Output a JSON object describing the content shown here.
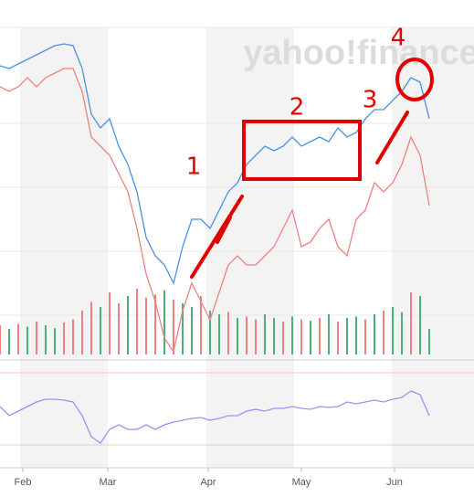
{
  "chart_data": {
    "type": "line",
    "watermark": "yahoo!finance",
    "annotations": [
      "1",
      "2",
      "3",
      "4"
    ],
    "months": [
      "Feb",
      "Mar",
      "Apr",
      "May",
      "Jun"
    ],
    "month_x": [
      25,
      118,
      228,
      330,
      432
    ],
    "xlim": [
      0,
      519
    ],
    "ylim": [
      0,
      400
    ],
    "x": [
      0,
      10,
      20,
      30,
      40,
      50,
      60,
      70,
      80,
      90,
      100,
      110,
      120,
      130,
      140,
      150,
      160,
      170,
      180,
      190,
      200,
      210,
      220,
      230,
      240,
      250,
      260,
      270,
      280,
      290,
      300,
      310,
      320,
      330,
      340,
      350,
      360,
      370,
      380,
      390,
      400,
      410,
      420,
      430,
      440,
      450,
      460,
      470
    ],
    "series": [
      {
        "color": "#4a90e2",
        "values": [
          328,
          325,
          330,
          335,
          340,
          345,
          350,
          352,
          350,
          325,
          275,
          260,
          270,
          240,
          220,
          190,
          140,
          120,
          110,
          90,
          130,
          160,
          160,
          150,
          170,
          190,
          200,
          220,
          230,
          240,
          235,
          240,
          250,
          240,
          245,
          250,
          245,
          260,
          250,
          255,
          270,
          280,
          280,
          290,
          300,
          315,
          310,
          270
        ]
      },
      {
        "color": "#f08080",
        "values": [
          305,
          300,
          305,
          315,
          305,
          315,
          320,
          325,
          325,
          300,
          250,
          240,
          230,
          210,
          190,
          150,
          100,
          70,
          30,
          15,
          60,
          90,
          70,
          50,
          80,
          110,
          120,
          110,
          110,
          120,
          130,
          150,
          170,
          130,
          135,
          150,
          160,
          130,
          120,
          160,
          170,
          200,
          190,
          200,
          220,
          250,
          230,
          175
        ]
      }
    ],
    "volume": {
      "ylim": [
        0,
        100
      ],
      "values": [
        40,
        35,
        42,
        38,
        45,
        40,
        36,
        44,
        48,
        60,
        72,
        65,
        85,
        70,
        80,
        90,
        78,
        82,
        88,
        75,
        70,
        65,
        80,
        60,
        55,
        58,
        50,
        52,
        48,
        55,
        50,
        45,
        52,
        48,
        46,
        50,
        55,
        45,
        50,
        52,
        48,
        55,
        60,
        65,
        58,
        85,
        80,
        35
      ],
      "colors": [
        "#f08080",
        "#4caf7a",
        "#f08080",
        "#4caf7a",
        "#f08080",
        "#4caf7a",
        "#4caf7a",
        "#f08080",
        "#f08080",
        "#f08080",
        "#f08080",
        "#4caf7a",
        "#f08080",
        "#f08080",
        "#4caf7a",
        "#f08080",
        "#f08080",
        "#f08080",
        "#4caf7a",
        "#f08080",
        "#4caf7a",
        "#4caf7a",
        "#f08080",
        "#4caf7a",
        "#4caf7a",
        "#f08080",
        "#4caf7a",
        "#f08080",
        "#f08080",
        "#4caf7a",
        "#4caf7a",
        "#f08080",
        "#4caf7a",
        "#f08080",
        "#4caf7a",
        "#f08080",
        "#4caf7a",
        "#f08080",
        "#4caf7a",
        "#4caf7a",
        "#f08080",
        "#4caf7a",
        "#f08080",
        "#4caf7a",
        "#4caf7a",
        "#f08080",
        "#4caf7a",
        "#4caf7a"
      ]
    },
    "indicator": {
      "color": "#a78bfa",
      "ylim": [
        8,
        120
      ],
      "values": [
        75,
        65,
        70,
        75,
        80,
        83,
        83,
        82,
        80,
        65,
        42,
        35,
        50,
        55,
        50,
        50,
        55,
        50,
        55,
        58,
        60,
        62,
        63,
        60,
        62,
        65,
        65,
        70,
        72,
        70,
        73,
        73,
        75,
        73,
        72,
        75,
        74,
        75,
        80,
        78,
        80,
        82,
        80,
        83,
        85,
        92,
        88,
        65
      ]
    }
  }
}
